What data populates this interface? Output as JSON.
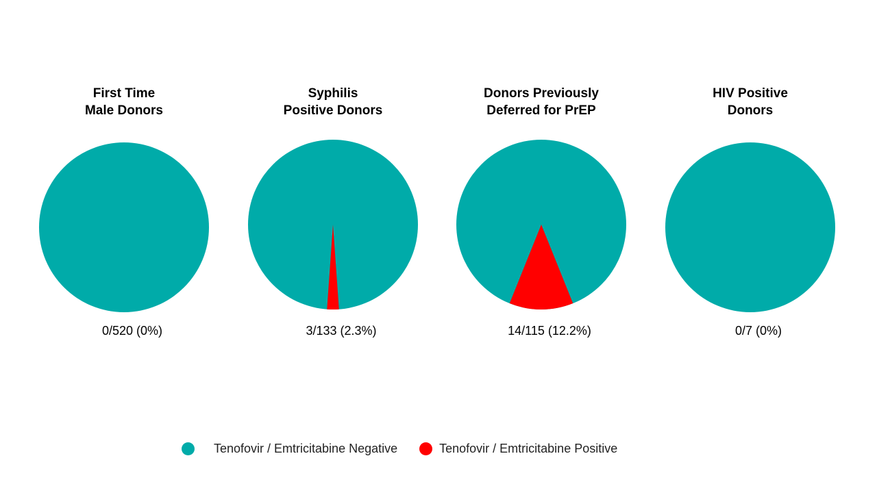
{
  "chart_data": [
    {
      "type": "pie",
      "title": "First Time\nMale Donors",
      "label": "0/520 (0%)",
      "positive": 0,
      "total": 520,
      "values": [
        520,
        0
      ]
    },
    {
      "type": "pie",
      "title": "Syphilis\nPositive Donors",
      "label": "3/133 (2.3%)",
      "positive": 3,
      "total": 133,
      "values": [
        130,
        3
      ]
    },
    {
      "type": "pie",
      "title": "Donors Previously\nDeferred for PrEP",
      "label": "14/115 (12.2%)",
      "positive": 14,
      "total": 115,
      "values": [
        101,
        14
      ]
    },
    {
      "type": "pie",
      "title": "HIV Positive\nDonors",
      "label": "0/7 (0%)",
      "positive": 0,
      "total": 7,
      "values": [
        7,
        0
      ]
    }
  ],
  "legend": [
    {
      "name": "Tenofovir / Emtricitabine Negative",
      "color": "#00ABA9"
    },
    {
      "name": "Tenofovir / Emtricitabine Positive",
      "color": "#FF0000"
    }
  ]
}
